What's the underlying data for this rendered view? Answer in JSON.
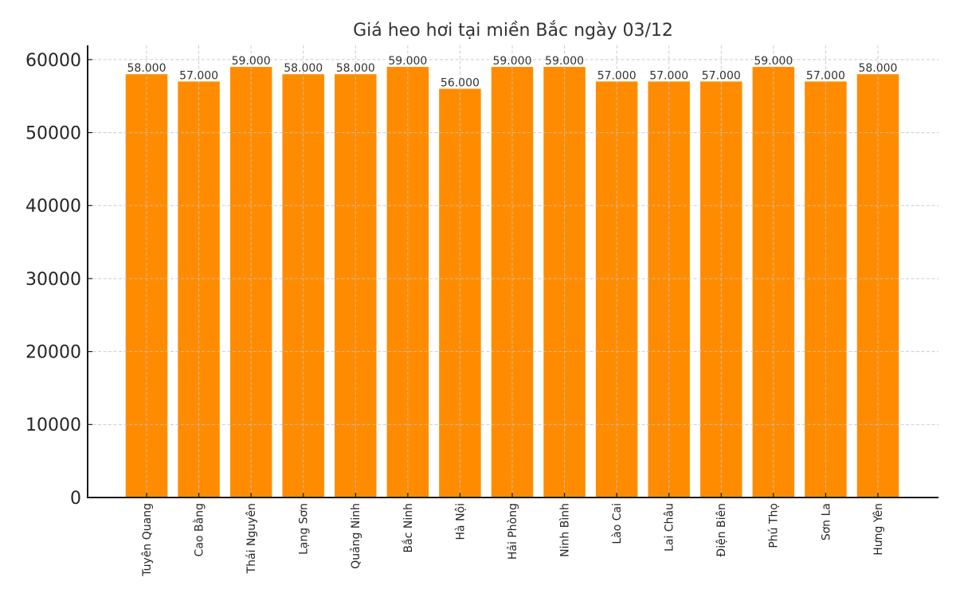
{
  "chart_data": {
    "type": "bar",
    "title": "Giá heo hơi tại miền Bắc ngày 03/12",
    "xlabel": "",
    "ylabel": "",
    "categories": [
      "Tuyên Quang",
      "Cao Bằng",
      "Thái Nguyên",
      "Lạng Sơn",
      "Quảng Ninh",
      "Bắc Ninh",
      "Hà Nội",
      "Hải Phòng",
      "Ninh Bình",
      "Lào Cai",
      "Lai Châu",
      "Điện Biên",
      "Phú Thọ",
      "Sơn La",
      "Hưng Yên"
    ],
    "values": [
      58000,
      57000,
      59000,
      58000,
      58000,
      59000,
      56000,
      59000,
      59000,
      57000,
      57000,
      57000,
      59000,
      57000,
      58000
    ],
    "value_labels": [
      "58.000",
      "57.000",
      "59.000",
      "58.000",
      "58.000",
      "59.000",
      "56.000",
      "59.000",
      "59.000",
      "57.000",
      "57.000",
      "57.000",
      "59.000",
      "57.000",
      "58.000"
    ],
    "ylim": [
      0,
      61950
    ],
    "yticks": [
      0,
      10000,
      20000,
      30000,
      40000,
      50000,
      60000
    ],
    "ytick_labels": [
      "0",
      "10000",
      "20000",
      "30000",
      "40000",
      "50000",
      "60000"
    ],
    "xtick_rotation": 90,
    "grid": true,
    "legend": null,
    "bar_color": "#FF8C00"
  }
}
